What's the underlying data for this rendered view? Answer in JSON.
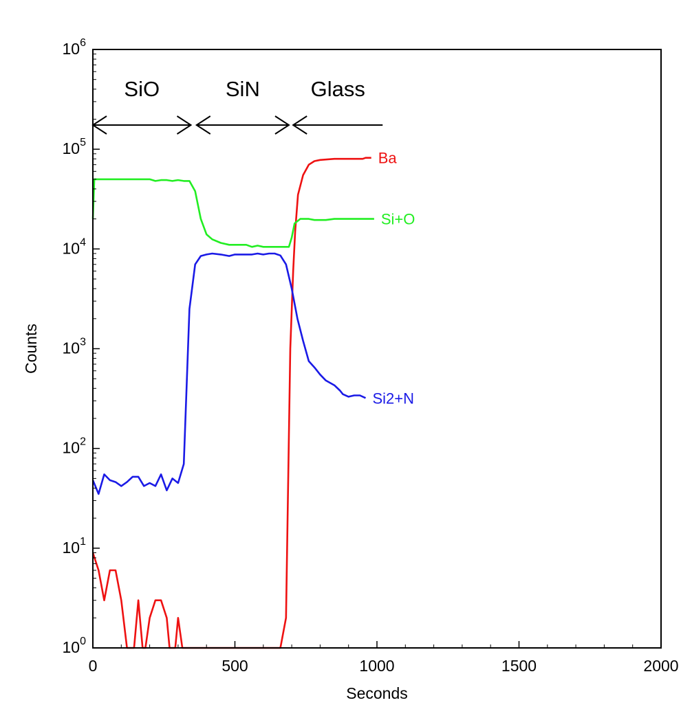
{
  "chart_data": {
    "type": "line",
    "xlabel": "Seconds",
    "ylabel": "Counts",
    "x_scale": "linear",
    "y_scale": "log",
    "xlim": [
      0,
      2000
    ],
    "ylim": [
      1,
      1000000
    ],
    "x_ticks": [
      0,
      500,
      1000,
      1500,
      2000
    ],
    "x_tick_labels": [
      "0",
      "500",
      "1000",
      "1500",
      "2000"
    ],
    "y_ticks": [
      1,
      10,
      100,
      1000,
      10000,
      100000,
      1000000
    ],
    "y_tick_labels": [
      {
        "base": "10",
        "exp": "0"
      },
      {
        "base": "10",
        "exp": "1"
      },
      {
        "base": "10",
        "exp": "2"
      },
      {
        "base": "10",
        "exp": "3"
      },
      {
        "base": "10",
        "exp": "4"
      },
      {
        "base": "10",
        "exp": "5"
      },
      {
        "base": "10",
        "exp": "6"
      }
    ],
    "grid": false,
    "regions": [
      {
        "label": "SiO",
        "x_start": 0,
        "x_end": 345
      },
      {
        "label": "SiN",
        "x_start": 365,
        "x_end": 690
      },
      {
        "label": "Glass",
        "x_start": 705,
        "x_end": 1020
      }
    ],
    "series": [
      {
        "name": "Ba",
        "color": "#ee1111",
        "points": [
          [
            0,
            9
          ],
          [
            20,
            6
          ],
          [
            40,
            3
          ],
          [
            60,
            6
          ],
          [
            80,
            6
          ],
          [
            100,
            3
          ],
          [
            120,
            1
          ],
          [
            145,
            1
          ],
          [
            160,
            3
          ],
          [
            175,
            1
          ],
          [
            185,
            1
          ],
          [
            200,
            2
          ],
          [
            220,
            3
          ],
          [
            240,
            3
          ],
          [
            260,
            2
          ],
          [
            270,
            1
          ],
          [
            290,
            1
          ],
          [
            300,
            2
          ],
          [
            315,
            1
          ],
          [
            660,
            1
          ],
          [
            680,
            2
          ],
          [
            695,
            1000
          ],
          [
            705,
            6000
          ],
          [
            712,
            15000
          ],
          [
            722,
            35000
          ],
          [
            740,
            55000
          ],
          [
            760,
            70000
          ],
          [
            780,
            76000
          ],
          [
            800,
            78000
          ],
          [
            850,
            80000
          ],
          [
            900,
            80000
          ],
          [
            950,
            80000
          ],
          [
            960,
            82000
          ],
          [
            980,
            82000
          ]
        ]
      },
      {
        "name": "Si+O",
        "color": "#22ee22",
        "points": [
          [
            0,
            20000
          ],
          [
            5,
            50000
          ],
          [
            20,
            50000
          ],
          [
            100,
            50000
          ],
          [
            200,
            50000
          ],
          [
            220,
            48000
          ],
          [
            240,
            49000
          ],
          [
            260,
            49000
          ],
          [
            280,
            48000
          ],
          [
            300,
            49000
          ],
          [
            320,
            48000
          ],
          [
            340,
            48000
          ],
          [
            360,
            38000
          ],
          [
            380,
            20000
          ],
          [
            400,
            14000
          ],
          [
            420,
            12500
          ],
          [
            450,
            11500
          ],
          [
            480,
            11000
          ],
          [
            500,
            11000
          ],
          [
            540,
            11000
          ],
          [
            560,
            10500
          ],
          [
            580,
            10800
          ],
          [
            600,
            10500
          ],
          [
            620,
            10500
          ],
          [
            640,
            10500
          ],
          [
            660,
            10500
          ],
          [
            690,
            10500
          ],
          [
            700,
            13000
          ],
          [
            710,
            18000
          ],
          [
            730,
            20000
          ],
          [
            760,
            20000
          ],
          [
            780,
            19500
          ],
          [
            820,
            19500
          ],
          [
            850,
            20000
          ],
          [
            900,
            20000
          ],
          [
            950,
            20000
          ],
          [
            990,
            20000
          ]
        ]
      },
      {
        "name": "Si2+N",
        "color": "#1a1ae6",
        "points": [
          [
            0,
            48
          ],
          [
            20,
            35
          ],
          [
            40,
            55
          ],
          [
            60,
            48
          ],
          [
            80,
            46
          ],
          [
            100,
            42
          ],
          [
            120,
            46
          ],
          [
            140,
            52
          ],
          [
            160,
            52
          ],
          [
            180,
            42
          ],
          [
            200,
            45
          ],
          [
            220,
            42
          ],
          [
            240,
            55
          ],
          [
            260,
            38
          ],
          [
            280,
            50
          ],
          [
            300,
            45
          ],
          [
            320,
            70
          ],
          [
            340,
            2500
          ],
          [
            360,
            7000
          ],
          [
            380,
            8500
          ],
          [
            400,
            8800
          ],
          [
            420,
            9000
          ],
          [
            450,
            8800
          ],
          [
            480,
            8500
          ],
          [
            500,
            8800
          ],
          [
            540,
            8800
          ],
          [
            560,
            8800
          ],
          [
            580,
            9000
          ],
          [
            600,
            8800
          ],
          [
            620,
            9000
          ],
          [
            640,
            9000
          ],
          [
            660,
            8600
          ],
          [
            680,
            7000
          ],
          [
            700,
            4000
          ],
          [
            720,
            2000
          ],
          [
            740,
            1200
          ],
          [
            760,
            750
          ],
          [
            780,
            650
          ],
          [
            800,
            550
          ],
          [
            820,
            480
          ],
          [
            850,
            430
          ],
          [
            870,
            380
          ],
          [
            880,
            350
          ],
          [
            900,
            330
          ],
          [
            920,
            340
          ],
          [
            940,
            340
          ],
          [
            960,
            320
          ]
        ]
      }
    ]
  }
}
